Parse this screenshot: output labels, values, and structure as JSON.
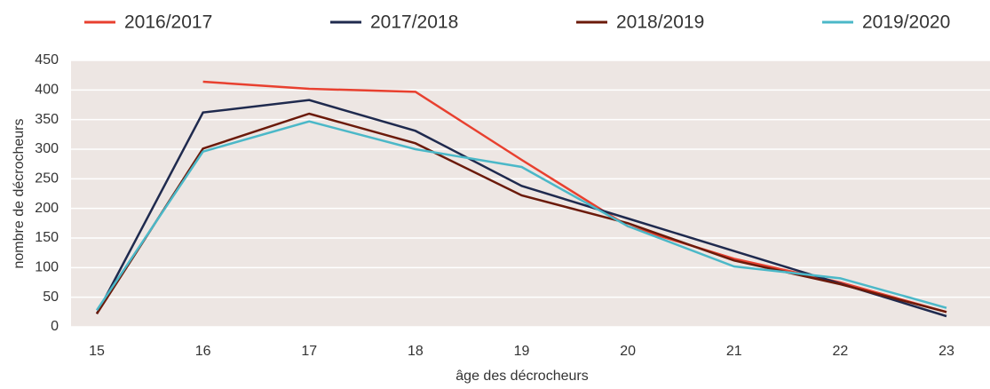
{
  "chart_data": {
    "type": "line",
    "x_label": "âge des décrocheurs",
    "y_label": "nombre de décrocheurs",
    "categories": [
      "15",
      "16",
      "17",
      "18",
      "19",
      "20",
      "21",
      "22",
      "23"
    ],
    "series": [
      {
        "name": "2016/2017",
        "color": "#e8402f",
        "values": [
          null,
          414,
          402,
          397,
          282,
          170,
          115,
          75,
          25
        ]
      },
      {
        "name": "2017/2018",
        "color": "#1f2a4e",
        "values": [
          22,
          362,
          383,
          331,
          238,
          183,
          128,
          73,
          18
        ]
      },
      {
        "name": "2018/2019",
        "color": "#6b1a0a",
        "values": [
          22,
          301,
          360,
          310,
          222,
          175,
          112,
          72,
          25
        ]
      },
      {
        "name": "2019/2020",
        "color": "#4bb8c8",
        "values": [
          28,
          296,
          347,
          300,
          270,
          170,
          102,
          82,
          32
        ]
      }
    ],
    "ylim": [
      0,
      450
    ],
    "yticks": [
      0,
      50,
      100,
      150,
      200,
      250,
      300,
      350,
      400,
      450
    ],
    "grid": true
  }
}
